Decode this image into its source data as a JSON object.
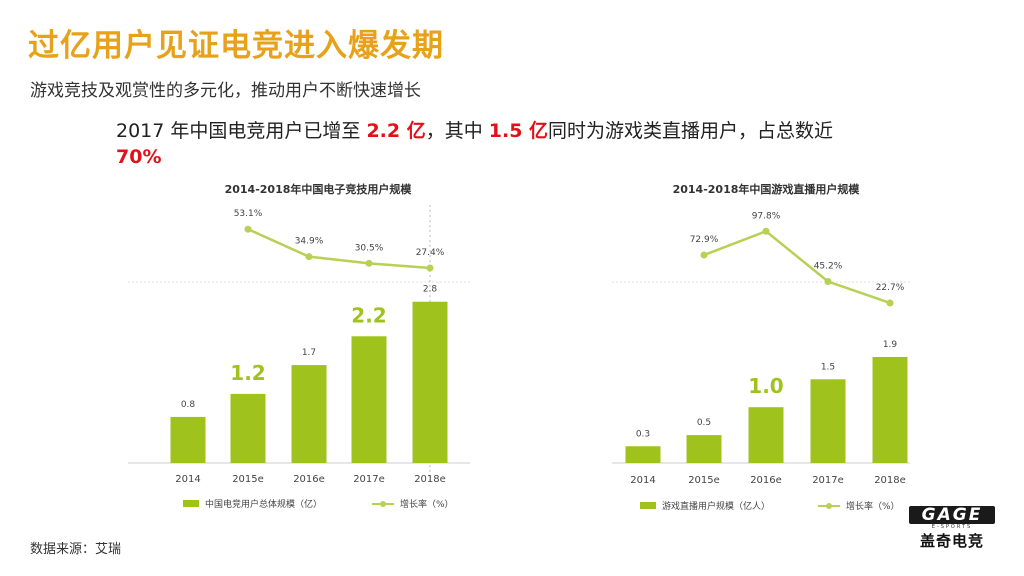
{
  "header": {
    "title": "过亿用户见证电竞进入爆发期",
    "subtitle": "游戏竞技及观赏性的多元化，推动用户不断快速增长"
  },
  "headline": {
    "part1": "2017 年中国电竞用户已增至 ",
    "hl1": "2.2 亿",
    "part2": "，其中 ",
    "hl2": "1.5 亿",
    "part3": "同时为游戏类直播用户，占总数近 ",
    "hl3": "70%"
  },
  "source": "数据来源：艾瑞",
  "logo": {
    "top": "GAGE",
    "mid": "E-SPORTS",
    "bottom": "盖奇电竞"
  },
  "colors": {
    "bar": "#9fc31c",
    "line": "#b6d153",
    "title": "#e8a21a",
    "highlight": "#e3101a"
  },
  "chart_data": [
    {
      "type": "bar",
      "title": "2014-2018年中国电子竞技用户规模",
      "categories": [
        "2014",
        "2015e",
        "2016e",
        "2017e",
        "2018e"
      ],
      "series": [
        {
          "name": "中国电竞用户总体规模（亿）",
          "values": [
            0.8,
            1.2,
            1.7,
            2.2,
            2.8
          ],
          "labels": [
            "0.8",
            "1.2",
            "1.7",
            "2.2",
            "2.8"
          ],
          "emphasized": [
            false,
            true,
            false,
            true,
            false
          ]
        },
        {
          "name": "增长率（%）",
          "type": "line",
          "values": [
            null,
            53.1,
            34.9,
            30.5,
            27.4
          ],
          "labels": [
            "",
            "53.1%",
            "34.9%",
            "30.5%",
            "27.4%"
          ]
        }
      ]
    },
    {
      "type": "bar",
      "title": "2014-2018年中国游戏直播用户规模",
      "categories": [
        "2014",
        "2015e",
        "2016e",
        "2017e",
        "2018e"
      ],
      "series": [
        {
          "name": "游戏直播用户规模（亿人）",
          "values": [
            0.3,
            0.5,
            1.0,
            1.5,
            1.9
          ],
          "labels": [
            "0.3",
            "0.5",
            "1.0",
            "1.5",
            "1.9"
          ],
          "emphasized": [
            false,
            false,
            true,
            false,
            false
          ]
        },
        {
          "name": "增长率（%）",
          "type": "line",
          "values": [
            null,
            72.9,
            97.8,
            45.2,
            22.7
          ],
          "labels": [
            "",
            "72.9%",
            "97.8%",
            "45.2%",
            "22.7%"
          ]
        }
      ]
    }
  ]
}
